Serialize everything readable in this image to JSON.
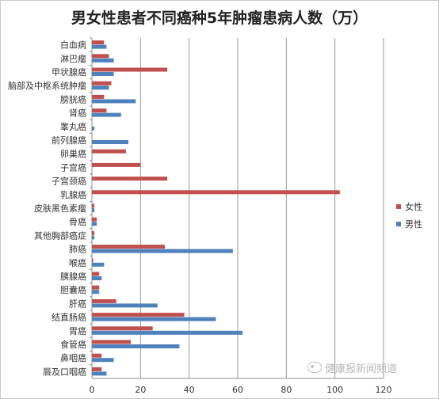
{
  "chart_data": {
    "type": "bar",
    "orientation": "horizontal",
    "title": "男女性患者不同癌种5年肿瘤患病人数（万）",
    "categories": [
      "白血病",
      "淋巴瘤",
      "甲状腺癌",
      "脑部及中枢系统肿瘤",
      "膀胱癌",
      "肾癌",
      "睾丸癌",
      "前列腺癌",
      "卵巢癌",
      "子宫癌",
      "子宫颈癌",
      "乳腺癌",
      "皮肤黑色素瘤",
      "骨癌",
      "其他胸部癌症",
      "肺癌",
      "喉癌",
      "胰腺癌",
      "胆囊癌",
      "肝癌",
      "结直肠癌",
      "胃癌",
      "食管癌",
      "鼻咽癌",
      "唇及口咽癌"
    ],
    "series": [
      {
        "name": "女性",
        "color": "#c0504d",
        "values": [
          5,
          7,
          31,
          8,
          5,
          6,
          0,
          0,
          14,
          20,
          31,
          102,
          1,
          2,
          1,
          30,
          0.5,
          3,
          3,
          10,
          38,
          25,
          16,
          4,
          4
        ]
      },
      {
        "name": "男性",
        "color": "#4f81bd",
        "values": [
          6,
          9,
          9,
          7,
          18,
          12,
          1,
          15,
          0,
          0,
          0,
          0,
          1,
          2,
          1,
          58,
          5,
          4,
          3,
          27,
          51,
          62,
          36,
          9,
          6
        ]
      }
    ],
    "xlim": [
      0,
      120
    ],
    "xticks": [
      0,
      20,
      40,
      60,
      80,
      100,
      120
    ],
    "grid": "vertical",
    "legend": "right",
    "xlabel": "",
    "ylabel": ""
  },
  "watermark": {
    "text": "健康报新闻频道",
    "icon": "wechat-icon"
  }
}
